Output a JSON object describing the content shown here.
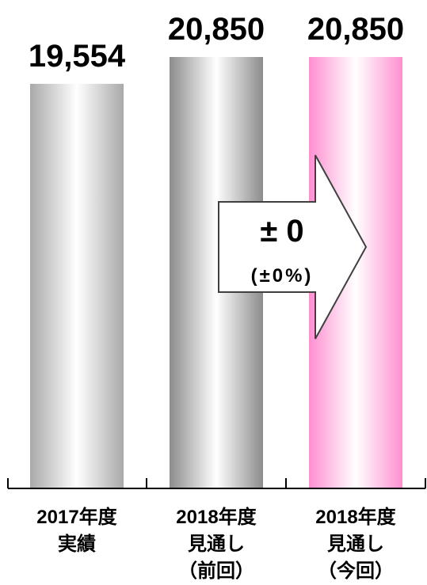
{
  "chart_data": {
    "type": "bar",
    "categories": [
      [
        "2017年度",
        "実績"
      ],
      [
        "2018年度",
        "見通し",
        "（前回）"
      ],
      [
        "2018年度",
        "見通し",
        "（今回）"
      ]
    ],
    "values": [
      19554,
      20850,
      20850
    ],
    "value_labels": [
      "19,554",
      "20,850",
      "20,850"
    ],
    "bar_styles": [
      "silver-light",
      "silver-dark",
      "pink"
    ],
    "colors": {
      "silver_edge": "#a6a6a6",
      "silver_center": "#ffffff",
      "silver_dark_edge": "#8c8c8c",
      "pink_edge": "#ff8fd0",
      "pink_center": "#ffffff"
    },
    "grid": false,
    "legend": "none",
    "annotation": {
      "type": "arrow",
      "main": "± 0",
      "sub": "(±0%)"
    }
  }
}
